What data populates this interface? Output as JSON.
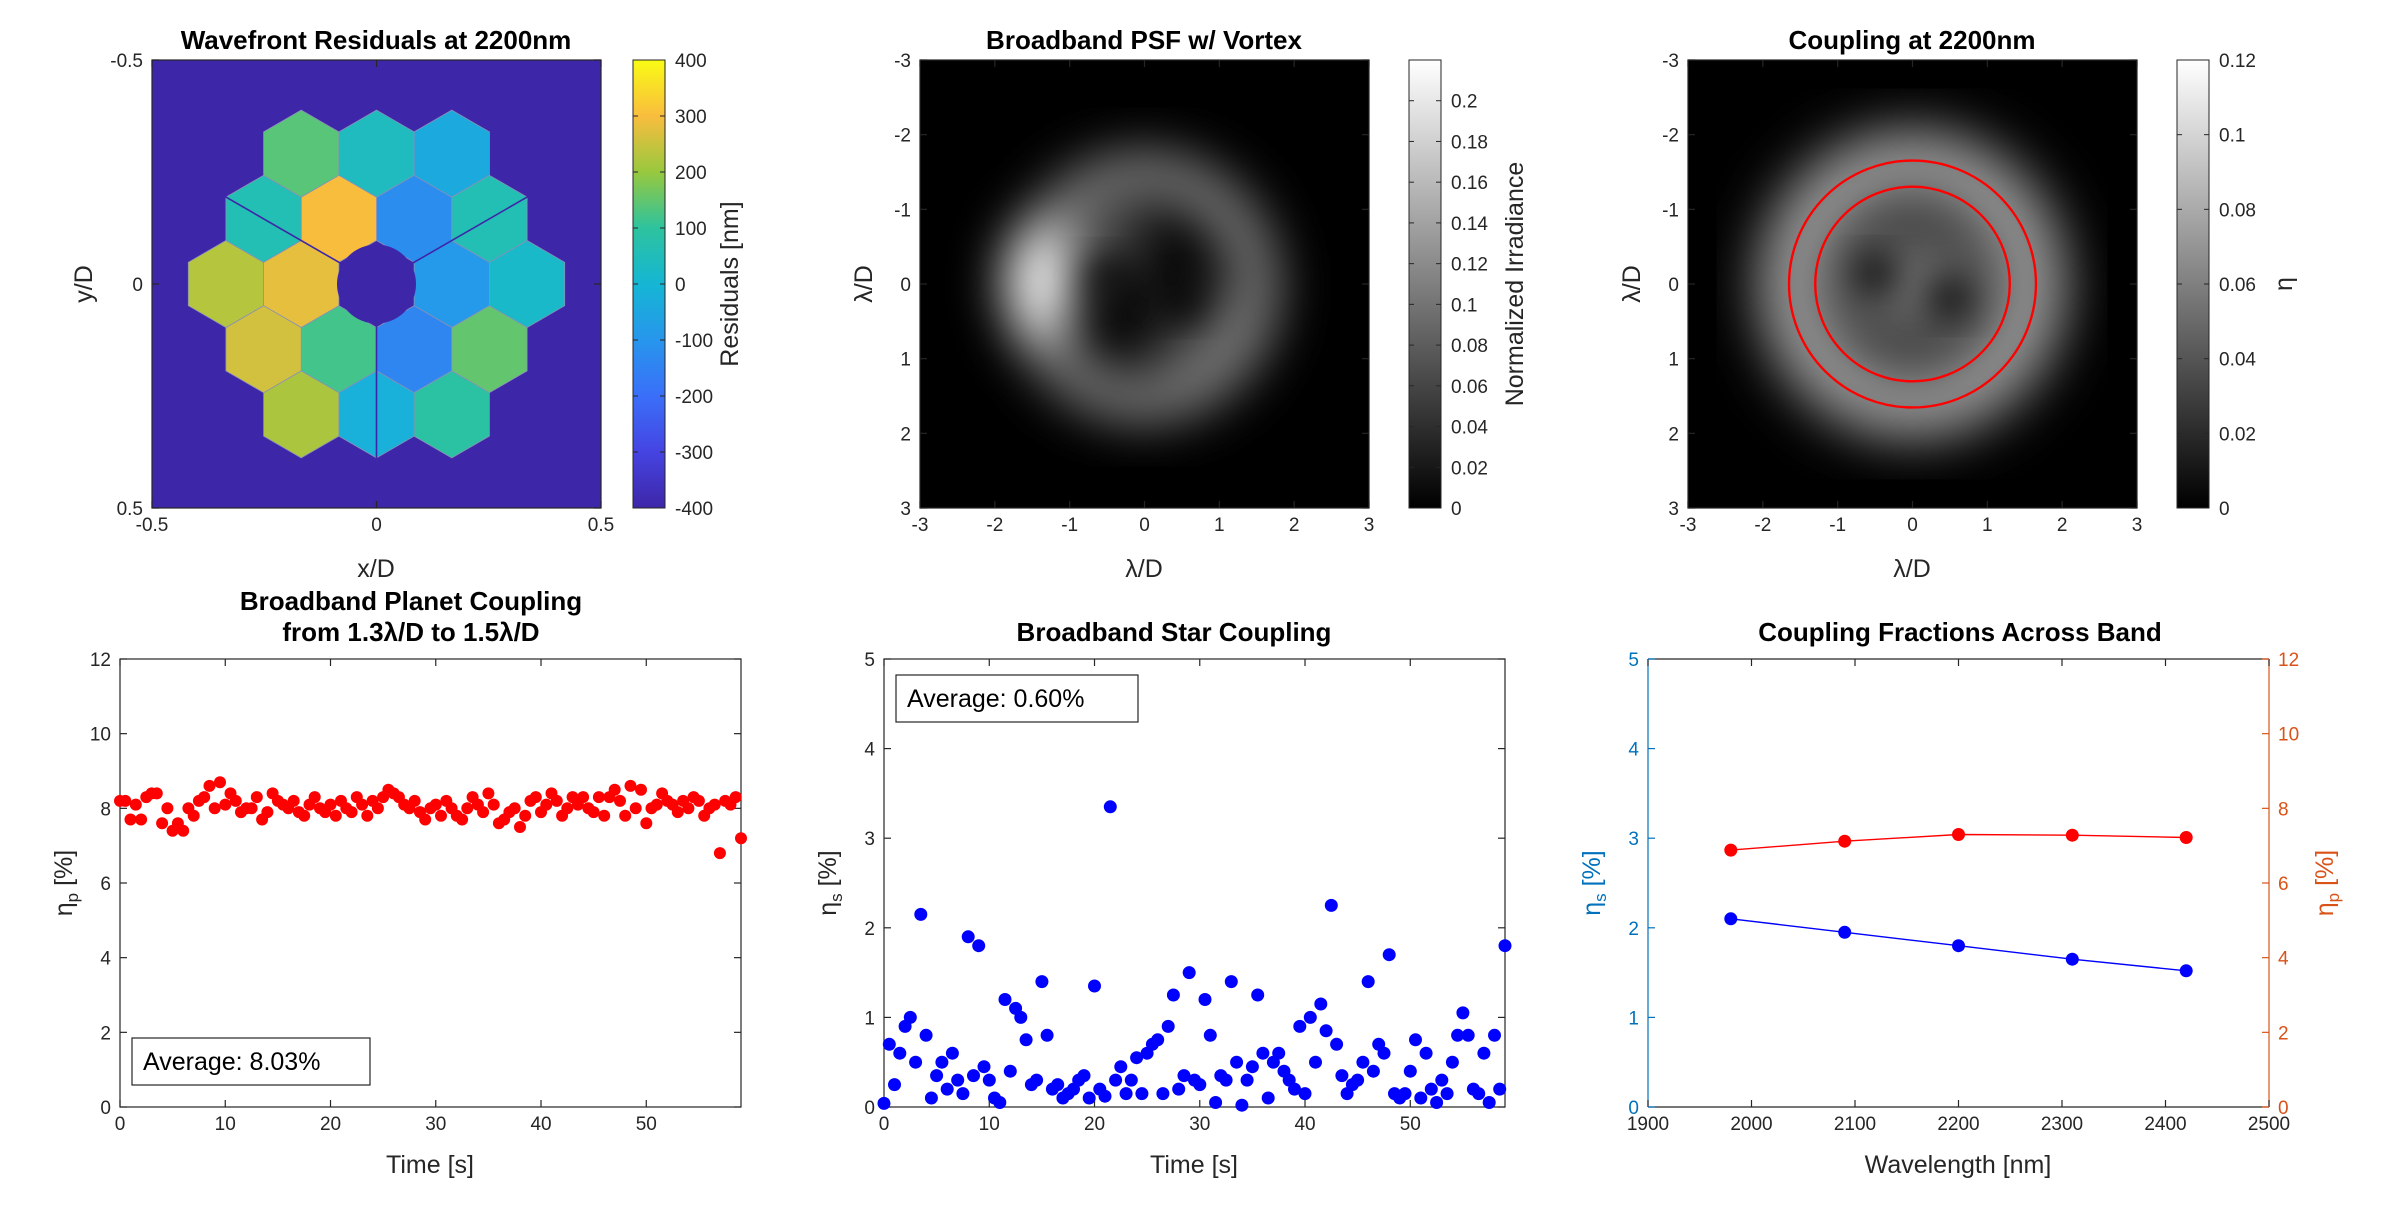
{
  "colors": {
    "axis": "#262626",
    "planet": "#ff0000",
    "star": "#0000ff",
    "left_axis": "#0072bd",
    "right_axis": "#d95319",
    "circle": "#ff0000"
  },
  "chart_data": [
    {
      "type": "heatmap",
      "title": "Wavefront Residuals at 2200nm",
      "xlabel": "x/D",
      "ylabel": "y/D",
      "xlim": [
        -0.5,
        0.5
      ],
      "ylim": [
        -0.5,
        0.5
      ],
      "xticks": [
        "-0.5",
        "0",
        "0.5"
      ],
      "yticks": [
        "-0.5",
        "0",
        "0.5"
      ],
      "colorbar": {
        "label": "Residuals [nm]",
        "range": [
          -400,
          400
        ],
        "ticks": [
          "400",
          "300",
          "200",
          "100",
          "0",
          "-100",
          "-200",
          "-300",
          "-400"
        ],
        "colormap": "parula"
      },
      "pupil": "segmented hexagonal, 18 segments, central obscuration with 3 spider struts",
      "segment_residuals_nm": [
        -120,
        -90,
        -140,
        120,
        280,
        300,
        -40,
        60,
        20,
        150,
        90,
        -20,
        220,
        260,
        230,
        60,
        140,
        40
      ]
    },
    {
      "type": "heatmap",
      "title": "Broadband PSF w/ Vortex",
      "xlabel": "λ/D",
      "ylabel": "λ/D",
      "xlim": [
        -3,
        3
      ],
      "ylim": [
        -3,
        3
      ],
      "xticks": [
        "-3",
        "-2",
        "-1",
        "0",
        "1",
        "2",
        "3"
      ],
      "yticks": [
        "-3",
        "-2",
        "-1",
        "0",
        "1",
        "2",
        "3"
      ],
      "colorbar": {
        "label": "Normalized Irradiance",
        "range": [
          0,
          0.22
        ],
        "ticks": [
          "0.2",
          "0.18",
          "0.16",
          "0.14",
          "0.12",
          "0.1",
          "0.08",
          "0.06",
          "0.04",
          "0.02",
          "0"
        ],
        "colormap": "gray"
      },
      "features": {
        "dark_cores": [
          [
            -0.6,
            0.15
          ],
          [
            0.5,
            -0.25
          ]
        ],
        "ring_radius": 1.4,
        "bright_lobe": [
          -1.6,
          0.1
        ]
      }
    },
    {
      "type": "heatmap",
      "title": "Coupling at 2200nm",
      "xlabel": "λ/D",
      "ylabel": "λ/D",
      "xlim": [
        -3,
        3
      ],
      "ylim": [
        -3,
        3
      ],
      "xticks": [
        "-3",
        "-2",
        "-1",
        "0",
        "1",
        "2",
        "3"
      ],
      "yticks": [
        "-3",
        "-2",
        "-1",
        "0",
        "1",
        "2",
        "3"
      ],
      "colorbar": {
        "label": "η",
        "range": [
          0,
          0.12
        ],
        "ticks": [
          "0.12",
          "0.1",
          "0.08",
          "0.06",
          "0.04",
          "0.02",
          "0"
        ],
        "colormap": "gray"
      },
      "circles": [
        1.3,
        1.65
      ],
      "features": {
        "dark_cores": [
          [
            -0.6,
            0.1
          ],
          [
            0.55,
            -0.2
          ]
        ],
        "ring_radius": 1.5
      }
    },
    {
      "type": "scatter",
      "title": "Broadband Planet Coupling",
      "title_line2": "from 1.3λ/D to 1.5λ/D",
      "xlabel": "Time [s]",
      "ylabel": "η",
      "ylabel_sub": "p",
      "ylabel_unit": " [%]",
      "xlim": [
        0,
        59
      ],
      "ylim": [
        0,
        12
      ],
      "xticks": [
        "0",
        "10",
        "20",
        "30",
        "40",
        "50"
      ],
      "yticks": [
        "0",
        "2",
        "4",
        "6",
        "8",
        "10",
        "12"
      ],
      "annotation": "Average: 8.03%",
      "x": [
        0.0,
        0.5,
        1.0,
        1.5,
        2.0,
        2.5,
        3.0,
        3.5,
        4.0,
        4.5,
        5.0,
        5.5,
        6.0,
        6.5,
        7.0,
        7.5,
        8.0,
        8.5,
        9.0,
        9.5,
        10.0,
        10.5,
        11.0,
        11.5,
        12.0,
        12.5,
        13.0,
        13.5,
        14.0,
        14.5,
        15.0,
        15.5,
        16.0,
        16.5,
        17.0,
        17.5,
        18.0,
        18.5,
        19.0,
        19.5,
        20.0,
        20.5,
        21.0,
        21.5,
        22.0,
        22.5,
        23.0,
        23.5,
        24.0,
        24.5,
        25.0,
        25.5,
        26.0,
        26.5,
        27.0,
        27.5,
        28.0,
        28.5,
        29.0,
        29.5,
        30.0,
        30.5,
        31.0,
        31.5,
        32.0,
        32.5,
        33.0,
        33.5,
        34.0,
        34.5,
        35.0,
        35.5,
        36.0,
        36.5,
        37.0,
        37.5,
        38.0,
        38.5,
        39.0,
        39.5,
        40.0,
        40.5,
        41.0,
        41.5,
        42.0,
        42.5,
        43.0,
        43.5,
        44.0,
        44.5,
        45.0,
        45.5,
        46.0,
        46.5,
        47.0,
        47.5,
        48.0,
        48.5,
        49.0,
        49.5,
        50.0,
        50.5,
        51.0,
        51.5,
        52.0,
        52.5,
        53.0,
        53.5,
        54.0,
        54.5,
        55.0,
        55.5,
        56.0,
        56.5,
        57.0,
        57.5,
        58.0,
        58.5,
        59.0
      ],
      "y": [
        8.2,
        8.2,
        7.7,
        8.1,
        7.7,
        8.3,
        8.4,
        8.4,
        7.6,
        8.0,
        7.4,
        7.6,
        7.4,
        8.0,
        7.8,
        8.2,
        8.3,
        8.6,
        8.0,
        8.7,
        8.1,
        8.4,
        8.2,
        7.9,
        8.0,
        8.0,
        8.3,
        7.7,
        7.9,
        8.4,
        8.2,
        8.1,
        8.0,
        8.2,
        7.9,
        7.8,
        8.1,
        8.3,
        8.0,
        7.9,
        8.1,
        7.8,
        8.2,
        8.0,
        7.9,
        8.3,
        8.1,
        7.8,
        8.2,
        8.0,
        8.3,
        8.5,
        8.4,
        8.3,
        8.1,
        8.0,
        8.2,
        7.9,
        7.7,
        8.0,
        8.1,
        7.8,
        8.2,
        8.0,
        7.8,
        7.7,
        8.0,
        8.3,
        8.1,
        7.9,
        8.4,
        8.1,
        7.6,
        7.7,
        7.9,
        8.0,
        7.5,
        7.8,
        8.2,
        8.3,
        7.9,
        8.1,
        8.4,
        8.2,
        7.8,
        8.0,
        8.3,
        8.1,
        8.3,
        8.0,
        7.9,
        8.3,
        7.8,
        8.3,
        8.5,
        8.2,
        7.8,
        8.6,
        8.0,
        8.5,
        7.6,
        8.0,
        8.1,
        8.4,
        8.2,
        8.1,
        7.9,
        8.2,
        8.0,
        8.3,
        8.2,
        7.8,
        8.0,
        8.1,
        6.8,
        8.2,
        8.1,
        8.3,
        7.2
      ]
    },
    {
      "type": "scatter",
      "title": "Broadband Star Coupling",
      "xlabel": "Time [s]",
      "ylabel": "η",
      "ylabel_sub": "s",
      "ylabel_unit": " [%]",
      "xlim": [
        0,
        59
      ],
      "ylim": [
        0,
        5
      ],
      "xticks": [
        "0",
        "10",
        "20",
        "30",
        "40",
        "50"
      ],
      "yticks": [
        "0",
        "1",
        "2",
        "3",
        "4",
        "5"
      ],
      "annotation": "Average: 0.60%",
      "x": [
        0.0,
        0.5,
        1.0,
        1.5,
        2.0,
        2.5,
        3.0,
        3.5,
        4.0,
        4.5,
        5.0,
        5.5,
        6.0,
        6.5,
        7.0,
        7.5,
        8.0,
        8.5,
        9.0,
        9.5,
        10.0,
        10.5,
        11.0,
        11.5,
        12.0,
        12.5,
        13.0,
        13.5,
        14.0,
        14.5,
        15.0,
        15.5,
        16.0,
        16.5,
        17.0,
        17.5,
        18.0,
        18.5,
        19.0,
        19.5,
        20.0,
        20.5,
        21.0,
        21.5,
        22.0,
        22.5,
        23.0,
        23.5,
        24.0,
        24.5,
        25.0,
        25.5,
        26.0,
        26.5,
        27.0,
        27.5,
        28.0,
        28.5,
        29.0,
        29.5,
        30.0,
        30.5,
        31.0,
        31.5,
        32.0,
        32.5,
        33.0,
        33.5,
        34.0,
        34.5,
        35.0,
        35.5,
        36.0,
        36.5,
        37.0,
        37.5,
        38.0,
        38.5,
        39.0,
        39.5,
        40.0,
        40.5,
        41.0,
        41.5,
        42.0,
        42.5,
        43.0,
        43.5,
        44.0,
        44.5,
        45.0,
        45.5,
        46.0,
        46.5,
        47.0,
        47.5,
        48.0,
        48.5,
        49.0,
        49.5,
        50.0,
        50.5,
        51.0,
        51.5,
        52.0,
        52.5,
        53.0,
        53.5,
        54.0,
        54.5,
        55.0,
        55.5,
        56.0,
        56.5,
        57.0,
        57.5,
        58.0,
        58.5,
        59.0
      ],
      "y": [
        0.04,
        0.7,
        0.25,
        0.6,
        0.9,
        1.0,
        0.5,
        2.15,
        0.8,
        0.1,
        0.35,
        0.5,
        0.2,
        0.6,
        0.3,
        0.15,
        1.9,
        0.35,
        1.8,
        0.45,
        0.3,
        0.1,
        0.05,
        1.2,
        0.4,
        1.1,
        1.0,
        0.75,
        0.25,
        0.3,
        1.4,
        0.8,
        0.2,
        0.25,
        0.1,
        0.15,
        0.2,
        0.3,
        0.35,
        0.1,
        1.35,
        0.2,
        0.12,
        3.35,
        0.3,
        0.45,
        0.15,
        0.3,
        0.55,
        0.15,
        0.6,
        0.7,
        0.75,
        0.15,
        0.9,
        1.25,
        0.2,
        0.35,
        1.5,
        0.3,
        0.25,
        1.2,
        0.8,
        0.05,
        0.35,
        0.3,
        1.4,
        0.5,
        0.02,
        0.3,
        0.45,
        1.25,
        0.6,
        0.1,
        0.5,
        0.6,
        0.4,
        0.3,
        0.2,
        0.9,
        0.15,
        1.0,
        0.5,
        1.15,
        0.85,
        2.25,
        0.7,
        0.35,
        0.15,
        0.25,
        0.3,
        0.5,
        1.4,
        0.4,
        0.7,
        0.6,
        1.7,
        0.15,
        0.1,
        0.15,
        0.4,
        0.75,
        0.1,
        0.6,
        0.2,
        0.05,
        0.3,
        0.15,
        0.5,
        0.8,
        1.05,
        0.8,
        0.2,
        0.15,
        0.6,
        0.05,
        0.8,
        0.2,
        1.8
      ]
    },
    {
      "type": "line",
      "title": "Coupling Fractions Across Band",
      "xlabel": "Wavelength [nm]",
      "xlim": [
        1900,
        2500
      ],
      "xticks": [
        "1900",
        "2000",
        "2100",
        "2200",
        "2300",
        "2400",
        "2500"
      ],
      "x": [
        1980,
        2090,
        2200,
        2310,
        2420
      ],
      "left_axis": {
        "label": "η",
        "sub": "s",
        "unit": " [%]",
        "ylim": [
          0,
          5
        ],
        "ticks": [
          "0",
          "1",
          "2",
          "3",
          "4",
          "5"
        ]
      },
      "right_axis": {
        "label": "η",
        "sub": "p",
        "unit": " [%]",
        "ylim": [
          0,
          12
        ],
        "ticks": [
          "0",
          "2",
          "4",
          "6",
          "8",
          "10",
          "12"
        ]
      },
      "series": [
        {
          "axis": "left",
          "values": [
            2.1,
            1.95,
            1.8,
            1.65,
            1.52
          ]
        },
        {
          "axis": "right",
          "values": [
            6.88,
            7.12,
            7.3,
            7.28,
            7.22
          ]
        }
      ]
    }
  ]
}
